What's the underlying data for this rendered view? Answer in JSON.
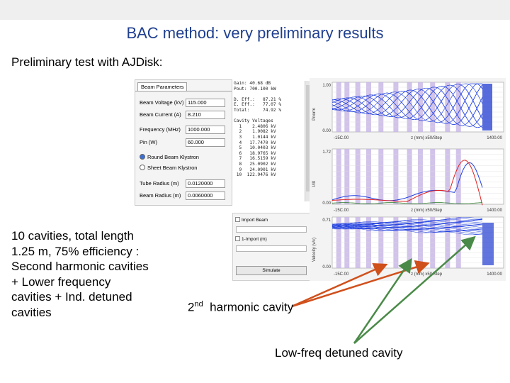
{
  "slide": {
    "title": "BAC method: very preliminary results",
    "subtitle": "Preliminary test with AJDisk:",
    "description": "10 cavities, total length 1.25 m, 75% efficiency : Second harmonic cavities + Lower frequency cavities + Ind. detuned cavities",
    "label_2nd_main": "2",
    "label_2nd_sup": "nd",
    "label_2nd_rest": "harmonic cavity",
    "label_lowfreq": "Low-freq detuned cavity"
  },
  "beam_params": {
    "tab": "Beam Parameters",
    "fields": [
      {
        "label": "Beam Voltage (kV)",
        "value": "115.000"
      },
      {
        "label": "Beam Current (A)",
        "value": "8.210"
      },
      {
        "label": "Frequency (MHz)",
        "value": "1000.000"
      },
      {
        "label": "Pin (W)",
        "value": "60.000"
      }
    ],
    "radio_round": "Round Beam Klystron",
    "radio_sheet": "Sheet Beam Klystron",
    "tube_radius_label": "Tube Radius (m)",
    "tube_radius_value": "0.0120000",
    "beam_radius_label": "Beam Radius (m)",
    "beam_radius_value": "0.0060000"
  },
  "results_text": [
    "Gain: 40.68 dB",
    "Pout: 700.100 kW",
    "",
    "D. Eff.:   87.21 %",
    "E. Eff.:   77.07 %",
    "Total:     74.92 %",
    "",
    "Cavity Voltages",
    "  1    2.4806 kV",
    "  2    1.9082 kV",
    "  3    1.0144 kV",
    "  4   17.7470 kV",
    "  5   10.0403 kV",
    "  6   18.9765 kV",
    "  7   16.5159 kV",
    "  8   25.0902 kV",
    "  9   24.0901 kV",
    " 10  122.9476 kV"
  ],
  "lower": {
    "import_beam": "Import Beam",
    "import_field": "1-Import (m)",
    "simulate_button": "Simulate"
  },
  "plots": {
    "power": {
      "ylabel": "Pnorm",
      "ytop": "1.00",
      "ybottom": "0.00",
      "xleft": "-15C.00",
      "xmid": "z (mm)  x50/Step",
      "xright": "1400.00"
    },
    "current": {
      "ylabel": "I/I0",
      "ytop": "1.72",
      "ybottom": "0.00",
      "xleft": "-15C.00",
      "xmid": "z (mm)  x50/Step",
      "xright": "1400.00"
    },
    "velocity": {
      "ylabel": "Velocity (v/c)",
      "ytop": "0.71",
      "ybottom": "0.00",
      "xleft": "-15C.00",
      "xmid": "z (mm)  x50/Step",
      "xright": "1400.00"
    }
  },
  "colors": {
    "title": "#1f3f8f",
    "cavity_band": "#c9b8e6",
    "trace_blue": "#2040e0",
    "trace_red": "#e02020",
    "arrow_orange": "#d0501c",
    "arrow_green": "#4a8a48"
  }
}
